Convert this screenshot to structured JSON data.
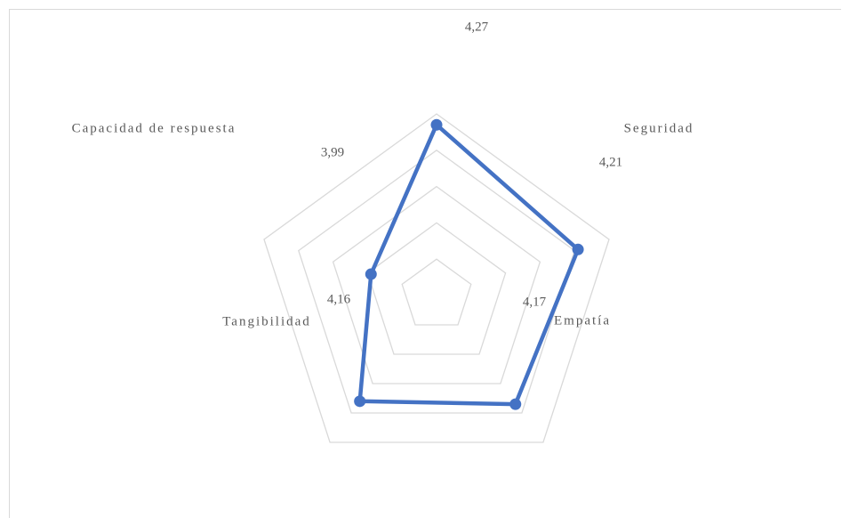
{
  "chart_data": {
    "type": "radar",
    "categories": [
      null,
      "Seguridad",
      "Empatía",
      "Tangibilidad",
      "Capacidad de respuesta"
    ],
    "values": [
      4.27,
      4.21,
      4.17,
      4.16,
      3.99
    ],
    "value_labels": [
      "4,27",
      "4,21",
      "4,17",
      "4,16",
      "3,99"
    ],
    "color": "#4472c4",
    "rlim": [
      3.8,
      4.3
    ],
    "rticks": [
      3.9,
      4.0,
      4.1,
      4.2,
      4.3
    ],
    "grid": true
  }
}
